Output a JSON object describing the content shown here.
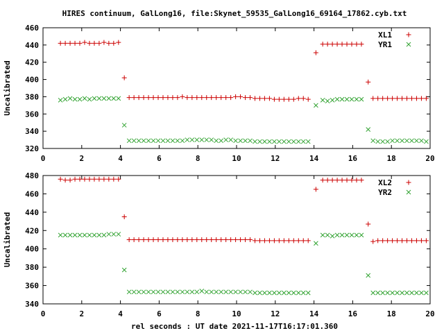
{
  "title": "HIRES continuum, GalLong16, file:Skynet_59535_GalLong16_69164_17862.cyb.txt",
  "xlabel": "rel seconds : UT date 2021-11-17T16:17:01.360",
  "colors": {
    "plus_series": "#cc0000",
    "cross_series": "#33a333",
    "axis": "#000000",
    "background": "#ffffff"
  },
  "chart_data": [
    {
      "type": "scatter",
      "title": "HIRES continuum, GalLong16, file:Skynet_59535_GalLong16_69164_17862.cyb.txt",
      "xlabel": "",
      "ylabel": "Uncalibrated",
      "xlim": [
        0,
        20
      ],
      "ylim": [
        320,
        460
      ],
      "xticks": [
        0,
        2,
        4,
        6,
        8,
        10,
        12,
        14,
        16,
        18,
        20
      ],
      "yticks": [
        320,
        340,
        360,
        380,
        400,
        420,
        440,
        460
      ],
      "grid": false,
      "legend": "top-right",
      "series": [
        {
          "name": "XL1",
          "marker": "plus",
          "color": "#cc0000",
          "x": [
            0.9,
            1.15,
            1.4,
            1.65,
            1.9,
            2.15,
            2.4,
            2.65,
            2.9,
            3.15,
            3.4,
            3.65,
            3.9,
            4.2,
            4.45,
            4.7,
            4.95,
            5.2,
            5.45,
            5.7,
            5.95,
            6.2,
            6.45,
            6.7,
            6.95,
            7.2,
            7.45,
            7.7,
            7.95,
            8.2,
            8.45,
            8.7,
            8.95,
            9.2,
            9.45,
            9.7,
            9.95,
            10.2,
            10.45,
            10.7,
            10.95,
            11.2,
            11.45,
            11.7,
            11.95,
            12.2,
            12.45,
            12.7,
            12.95,
            13.2,
            13.45,
            13.7,
            14.1,
            14.45,
            14.7,
            14.95,
            15.2,
            15.45,
            15.7,
            15.95,
            16.2,
            16.45,
            16.8,
            17.05,
            17.3,
            17.55,
            17.8,
            18.05,
            18.3,
            18.55,
            18.8,
            19.05,
            19.3,
            19.55,
            19.8
          ],
          "y": [
            442,
            442,
            442,
            442,
            442,
            443,
            442,
            442,
            442,
            443,
            442,
            442,
            443,
            402,
            379,
            379,
            379,
            379,
            379,
            379,
            379,
            379,
            379,
            379,
            379,
            380,
            379,
            379,
            379,
            379,
            379,
            379,
            379,
            379,
            379,
            379,
            380,
            380,
            379,
            379,
            378,
            378,
            378,
            378,
            377,
            377,
            377,
            377,
            377,
            378,
            378,
            377,
            431,
            441,
            441,
            441,
            441,
            441,
            441,
            441,
            441,
            441,
            397,
            378,
            378,
            378,
            378,
            378,
            378,
            378,
            378,
            378,
            378,
            378,
            378
          ]
        },
        {
          "name": "YR1",
          "marker": "cross",
          "color": "#33a333",
          "x": [
            0.9,
            1.15,
            1.4,
            1.65,
            1.9,
            2.15,
            2.4,
            2.65,
            2.9,
            3.15,
            3.4,
            3.65,
            3.9,
            4.2,
            4.45,
            4.7,
            4.95,
            5.2,
            5.45,
            5.7,
            5.95,
            6.2,
            6.45,
            6.7,
            6.95,
            7.2,
            7.45,
            7.7,
            7.95,
            8.2,
            8.45,
            8.7,
            8.95,
            9.2,
            9.45,
            9.7,
            9.95,
            10.2,
            10.45,
            10.7,
            10.95,
            11.2,
            11.45,
            11.7,
            11.95,
            12.2,
            12.45,
            12.7,
            12.95,
            13.2,
            13.45,
            13.7,
            14.1,
            14.45,
            14.7,
            14.95,
            15.2,
            15.45,
            15.7,
            15.95,
            16.2,
            16.45,
            16.8,
            17.05,
            17.3,
            17.55,
            17.8,
            18.05,
            18.3,
            18.55,
            18.8,
            19.05,
            19.3,
            19.55,
            19.8
          ],
          "y": [
            376,
            377,
            378,
            377,
            377,
            378,
            377,
            378,
            378,
            378,
            378,
            378,
            378,
            347,
            329,
            329,
            329,
            329,
            329,
            329,
            329,
            329,
            329,
            329,
            329,
            329,
            330,
            330,
            330,
            330,
            330,
            330,
            329,
            329,
            330,
            330,
            329,
            329,
            329,
            329,
            328,
            328,
            328,
            328,
            328,
            328,
            328,
            328,
            328,
            328,
            328,
            328,
            370,
            376,
            375,
            376,
            377,
            377,
            377,
            377,
            377,
            377,
            342,
            329,
            328,
            328,
            328,
            329,
            329,
            329,
            329,
            329,
            329,
            329,
            328
          ]
        }
      ]
    },
    {
      "type": "scatter",
      "xlabel": "rel seconds : UT date 2021-11-17T16:17:01.360",
      "ylabel": "Uncalibrated",
      "xlim": [
        0,
        20
      ],
      "ylim": [
        340,
        480
      ],
      "xticks": [
        0,
        2,
        4,
        6,
        8,
        10,
        12,
        14,
        16,
        18,
        20
      ],
      "yticks": [
        340,
        360,
        380,
        400,
        420,
        440,
        460,
        480
      ],
      "grid": false,
      "legend": "top-right",
      "series": [
        {
          "name": "XL2",
          "marker": "plus",
          "color": "#cc0000",
          "x": [
            0.9,
            1.15,
            1.4,
            1.65,
            1.9,
            2.15,
            2.4,
            2.65,
            2.9,
            3.15,
            3.4,
            3.65,
            3.9,
            4.2,
            4.45,
            4.7,
            4.95,
            5.2,
            5.45,
            5.7,
            5.95,
            6.2,
            6.45,
            6.7,
            6.95,
            7.2,
            7.45,
            7.7,
            7.95,
            8.2,
            8.45,
            8.7,
            8.95,
            9.2,
            9.45,
            9.7,
            9.95,
            10.2,
            10.45,
            10.7,
            10.95,
            11.2,
            11.45,
            11.7,
            11.95,
            12.2,
            12.45,
            12.7,
            12.95,
            13.2,
            13.45,
            13.7,
            14.1,
            14.45,
            14.7,
            14.95,
            15.2,
            15.45,
            15.7,
            15.95,
            16.2,
            16.45,
            16.8,
            17.05,
            17.3,
            17.55,
            17.8,
            18.05,
            18.3,
            18.55,
            18.8,
            19.05,
            19.3,
            19.55,
            19.8
          ],
          "y": [
            476,
            475,
            475,
            476,
            476,
            476,
            476,
            476,
            476,
            476,
            476,
            476,
            476,
            435,
            410,
            410,
            410,
            410,
            410,
            410,
            410,
            410,
            410,
            410,
            410,
            410,
            410,
            410,
            410,
            410,
            410,
            410,
            410,
            410,
            410,
            410,
            410,
            410,
            410,
            410,
            409,
            409,
            409,
            409,
            409,
            409,
            409,
            409,
            409,
            409,
            409,
            409,
            465,
            475,
            475,
            475,
            475,
            475,
            475,
            475,
            475,
            475,
            427,
            408,
            409,
            409,
            409,
            409,
            409,
            409,
            409,
            409,
            409,
            409,
            409
          ]
        },
        {
          "name": "YR2",
          "marker": "cross",
          "color": "#33a333",
          "x": [
            0.9,
            1.15,
            1.4,
            1.65,
            1.9,
            2.15,
            2.4,
            2.65,
            2.9,
            3.15,
            3.4,
            3.65,
            3.9,
            4.2,
            4.45,
            4.7,
            4.95,
            5.2,
            5.45,
            5.7,
            5.95,
            6.2,
            6.45,
            6.7,
            6.95,
            7.2,
            7.45,
            7.7,
            7.95,
            8.2,
            8.45,
            8.7,
            8.95,
            9.2,
            9.45,
            9.7,
            9.95,
            10.2,
            10.45,
            10.7,
            10.95,
            11.2,
            11.45,
            11.7,
            11.95,
            12.2,
            12.45,
            12.7,
            12.95,
            13.2,
            13.45,
            13.7,
            14.1,
            14.45,
            14.7,
            14.95,
            15.2,
            15.45,
            15.7,
            15.95,
            16.2,
            16.45,
            16.8,
            17.05,
            17.3,
            17.55,
            17.8,
            18.05,
            18.3,
            18.55,
            18.8,
            19.05,
            19.3,
            19.55,
            19.8
          ],
          "y": [
            415,
            415,
            415,
            415,
            415,
            415,
            415,
            415,
            415,
            415,
            416,
            416,
            416,
            377,
            353,
            353,
            353,
            353,
            353,
            353,
            353,
            353,
            353,
            353,
            353,
            353,
            353,
            353,
            353,
            354,
            353,
            353,
            353,
            353,
            353,
            353,
            353,
            353,
            353,
            353,
            352,
            352,
            352,
            352,
            352,
            352,
            352,
            352,
            352,
            352,
            352,
            352,
            406,
            415,
            415,
            414,
            415,
            415,
            415,
            415,
            415,
            415,
            371,
            352,
            352,
            352,
            352,
            352,
            352,
            352,
            352,
            352,
            352,
            352,
            352
          ]
        }
      ]
    }
  ]
}
